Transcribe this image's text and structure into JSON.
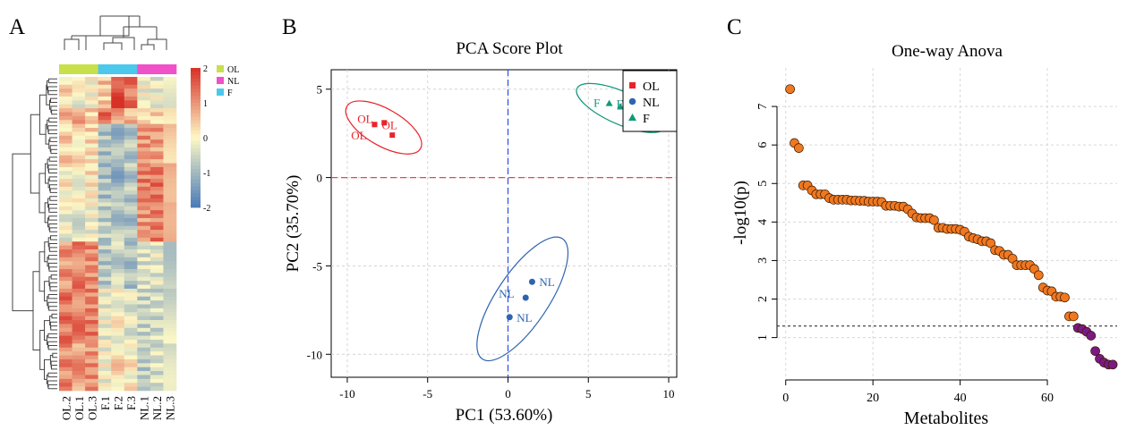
{
  "panels": {
    "a": "A",
    "b": "B",
    "c": "C"
  },
  "colors": {
    "OL": "#c8e04a",
    "NL": "#f050c8",
    "F": "#4cc8ec",
    "pca_OL": "#e8242a",
    "pca_NL": "#2f64b0",
    "pca_F": "#13987a",
    "anova_sig": "#f07820",
    "anova_ns": "#7a1a82",
    "heat_low": "#4a7ab8",
    "heat_mid": "#fdf8c6",
    "heat_high": "#d73027"
  },
  "heatmap": {
    "columns": [
      "OL.2",
      "OL.1",
      "OL.3",
      "F.1",
      "F.2",
      "F.3",
      "NL.1",
      "NL.2",
      "NL.3"
    ],
    "legend_groups": [
      "OL",
      "NL",
      "F"
    ],
    "scale_ticks": [
      "2",
      "1",
      "0",
      "-1",
      "-2"
    ]
  },
  "chart_data": [
    {
      "type": "heatmap",
      "title": "",
      "columns": [
        "OL.2",
        "OL.1",
        "OL.3",
        "F.1",
        "F.2",
        "F.3",
        "NL.1",
        "NL.2",
        "NL.3"
      ],
      "groups": [
        "OL",
        "OL",
        "OL",
        "F",
        "F",
        "F",
        "NL",
        "NL",
        "NL"
      ],
      "scale": [
        -2,
        2
      ],
      "row_blocks": [
        {
          "rows": 8,
          "values": [
            0.3,
            -0.2,
            0.0,
            0.5,
            1.8,
            1.3,
            -0.1,
            -0.2,
            0.0
          ]
        },
        {
          "rows": 4,
          "values": [
            0.6,
            0.8,
            0.4,
            1.5,
            0.8,
            0.7,
            0.2,
            0.3,
            0.4
          ]
        },
        {
          "rows": 10,
          "values": [
            0.4,
            0.3,
            0.3,
            -0.9,
            -1.0,
            -0.8,
            1.0,
            0.9,
            0.6
          ]
        },
        {
          "rows": 10,
          "values": [
            0.1,
            0.0,
            0.2,
            -0.9,
            -1.1,
            -0.8,
            1.2,
            1.3,
            1.0
          ]
        },
        {
          "rows": 10,
          "values": [
            -0.2,
            -0.3,
            -0.1,
            -0.7,
            -0.8,
            -0.9,
            1.0,
            1.2,
            1.1
          ]
        },
        {
          "rows": 12,
          "values": [
            1.0,
            1.2,
            1.1,
            -0.8,
            -0.6,
            -0.9,
            -0.4,
            -0.3,
            -0.5
          ]
        },
        {
          "rows": 14,
          "values": [
            1.3,
            1.2,
            1.2,
            -0.2,
            0.0,
            -0.3,
            -0.6,
            -0.5,
            -0.4
          ]
        },
        {
          "rows": 12,
          "values": [
            1.1,
            0.9,
            1.0,
            -0.1,
            0.3,
            0.1,
            -0.7,
            -0.4,
            -0.6
          ]
        }
      ]
    },
    {
      "type": "scatter",
      "title": "PCA Score Plot",
      "xlabel": "PC1 (53.60%)",
      "ylabel": "PC2 (35.70%)",
      "xlim": [
        -11,
        10.5
      ],
      "ylim": [
        -11.3,
        6.1
      ],
      "xticks": [
        -10,
        -5,
        0,
        5,
        10
      ],
      "yticks": [
        -10,
        -5,
        0,
        5
      ],
      "grid": true,
      "legend_position": "top-right",
      "series": [
        {
          "name": "OL",
          "points": [
            [
              -8.3,
              3.0
            ],
            [
              -7.7,
              3.1
            ],
            [
              -7.2,
              2.4
            ]
          ],
          "labels": [
            "OL",
            "OL",
            "OL"
          ],
          "marker": "square"
        },
        {
          "name": "NL",
          "points": [
            [
              1.5,
              -5.9
            ],
            [
              1.1,
              -6.8
            ],
            [
              0.1,
              -7.9
            ]
          ],
          "labels": [
            "NL",
            "NL",
            "NL"
          ],
          "marker": "circle"
        },
        {
          "name": "F",
          "points": [
            [
              6.3,
              4.2
            ],
            [
              7.0,
              4.0
            ],
            [
              7.8,
              3.6
            ]
          ],
          "labels": [
            "F",
            "F",
            "F"
          ],
          "marker": "triangle"
        }
      ]
    },
    {
      "type": "scatter",
      "title": "One-way Anova",
      "xlabel": "Metabolites",
      "ylabel": "-log10(p)",
      "xlim": [
        -2,
        76
      ],
      "ylim": [
        -0.1,
        8.0
      ],
      "xticks": [
        0,
        20,
        40,
        60
      ],
      "yticks": [
        1,
        2,
        3,
        4,
        5,
        6,
        7
      ],
      "threshold": 1.3,
      "grid": true,
      "x": [
        1,
        2,
        3,
        4,
        5,
        6,
        7,
        8,
        9,
        10,
        11,
        12,
        13,
        14,
        15,
        16,
        17,
        18,
        19,
        20,
        21,
        22,
        23,
        24,
        25,
        26,
        27,
        28,
        29,
        30,
        31,
        32,
        33,
        34,
        35,
        36,
        37,
        38,
        39,
        40,
        41,
        42,
        43,
        44,
        45,
        46,
        47,
        48,
        49,
        50,
        51,
        52,
        53,
        54,
        55,
        56,
        57,
        58,
        59,
        60,
        61,
        62,
        63,
        64,
        65,
        66,
        67,
        68,
        69,
        70,
        71,
        72,
        73,
        74,
        75
      ],
      "values": [
        7.45,
        6.05,
        5.92,
        4.95,
        4.95,
        4.82,
        4.72,
        4.72,
        4.72,
        4.62,
        4.58,
        4.58,
        4.58,
        4.58,
        4.56,
        4.56,
        4.55,
        4.55,
        4.53,
        4.53,
        4.53,
        4.52,
        4.42,
        4.42,
        4.42,
        4.4,
        4.4,
        4.33,
        4.22,
        4.12,
        4.1,
        4.1,
        4.1,
        4.05,
        3.85,
        3.85,
        3.82,
        3.82,
        3.82,
        3.8,
        3.75,
        3.62,
        3.58,
        3.55,
        3.5,
        3.5,
        3.45,
        3.27,
        3.25,
        3.15,
        3.15,
        3.05,
        2.88,
        2.88,
        2.88,
        2.88,
        2.78,
        2.62,
        2.3,
        2.22,
        2.2,
        2.06,
        2.06,
        2.04,
        1.55,
        1.55,
        1.25,
        1.22,
        1.15,
        1.05,
        0.65,
        0.45,
        0.35,
        0.3,
        0.3
      ]
    }
  ]
}
